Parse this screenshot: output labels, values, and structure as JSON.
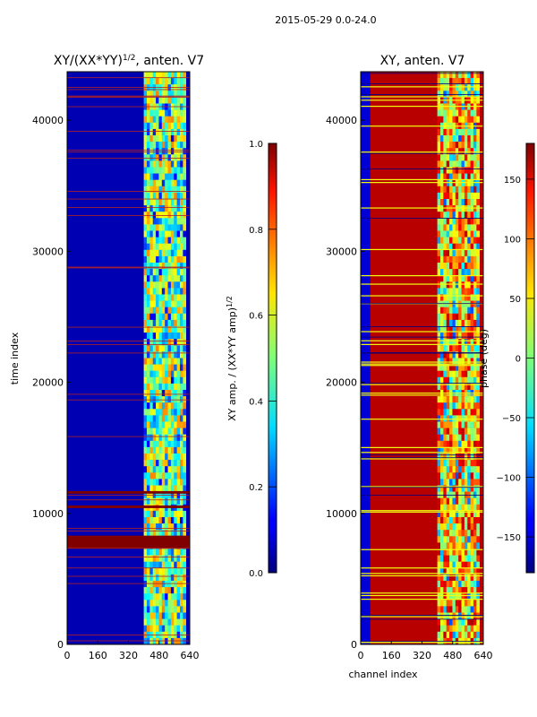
{
  "figure": {
    "suptitle": "2015-05-29 0.0-24.0"
  },
  "chart_data": [
    {
      "type": "heatmap",
      "title": "XY/(XX*YY)^(1/2), anten. V7",
      "title_main": "XY/(XX*YY)",
      "title_sup": "1/2",
      "title_tail": ", anten. V7",
      "xlabel": "",
      "ylabel": "time index",
      "xlim": [
        0,
        640
      ],
      "ylim": [
        0,
        43700
      ],
      "x_ticks": [
        0,
        160,
        320,
        480,
        640
      ],
      "y_ticks": [
        0,
        10000,
        20000,
        30000,
        40000
      ],
      "colormap": "jet",
      "colorbar": {
        "label": "XY amp. / (XX*YY amp)^(1/2)",
        "label_main": "XY amp. / (XX*YY amp)",
        "label_sup": "1/2",
        "range": [
          0.0,
          1.0
        ],
        "ticks": [
          0.0,
          0.2,
          0.4,
          0.6,
          0.8,
          1.0
        ],
        "tick_labels": [
          "0.0",
          "0.2",
          "0.4",
          "0.6",
          "0.8",
          "1.0"
        ]
      },
      "background_value": 0.05,
      "active_band_channels": [
        400,
        620
      ],
      "active_band_value_range": [
        0.3,
        0.75
      ],
      "high_rows": [
        {
          "y0": 7300,
          "y1": 8300,
          "value": 1.0
        },
        {
          "y0": 10400,
          "y1": 10600,
          "value": 1.0
        },
        {
          "y0": 11500,
          "y1": 11700,
          "value": 1.0
        }
      ]
    },
    {
      "type": "heatmap",
      "title": "XY, anten. V7",
      "xlabel": "channel index",
      "ylabel": "",
      "xlim": [
        0,
        640
      ],
      "ylim": [
        0,
        43700
      ],
      "x_ticks": [
        0,
        160,
        320,
        480,
        640
      ],
      "y_ticks": [
        0,
        10000,
        20000,
        30000,
        40000
      ],
      "colormap": "jet",
      "colorbar": {
        "label": "phase (deg)",
        "range": [
          -180,
          180
        ],
        "ticks": [
          -150,
          -100,
          -50,
          0,
          50,
          100,
          150
        ],
        "tick_labels": [
          "−150",
          "−100",
          "−50",
          "0",
          "50",
          "100",
          "150"
        ]
      },
      "background_value_deg": 160,
      "left_band_value_deg": -150,
      "active_band_channels": [
        400,
        620
      ],
      "stripe_value_deg": 40
    }
  ]
}
